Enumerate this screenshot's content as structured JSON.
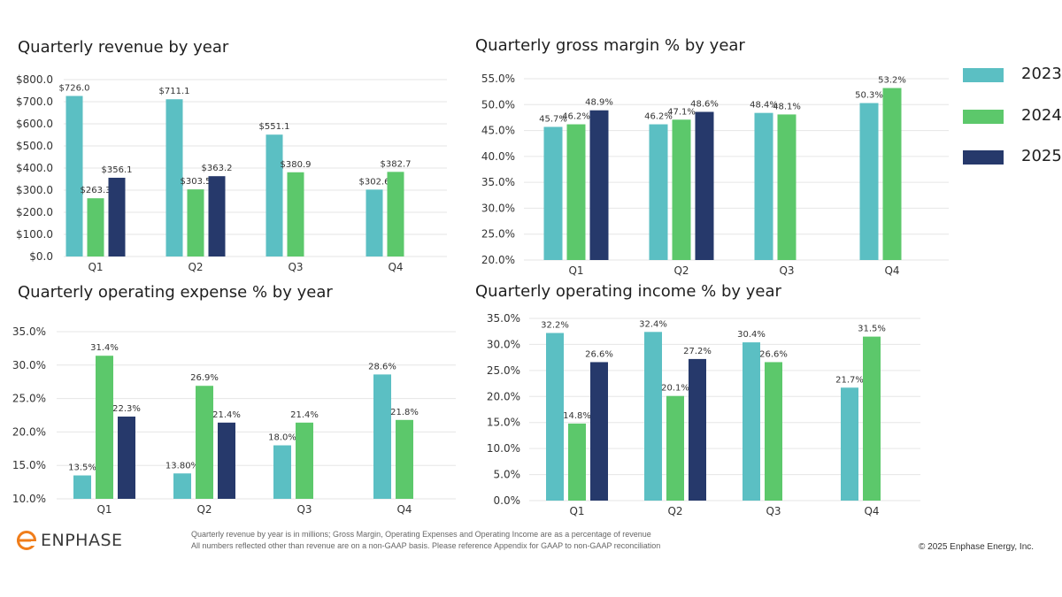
{
  "legend": {
    "items": [
      {
        "label": "2023",
        "color": "#5bbfc3"
      },
      {
        "label": "2024",
        "color": "#5cc86b"
      },
      {
        "label": "2025",
        "color": "#26396b"
      }
    ]
  },
  "footer": {
    "logo_text": "ENPHASE",
    "note_line1": "Quarterly revenue by year is in millions; Gross Margin, Operating Expenses and Operating Income are as a percentage of revenue",
    "note_line2": "All numbers reflected other than revenue are on a non-GAAP basis.  Please reference Appendix for GAAP to non-GAAP reconciliation",
    "copyright": "© 2025 Enphase Energy, Inc."
  },
  "chart_data": [
    {
      "type": "bar",
      "title": "Quarterly revenue by year",
      "categories": [
        "Q1",
        "Q2",
        "Q3",
        "Q4"
      ],
      "ylim": [
        0,
        800
      ],
      "yticks": [
        0,
        100,
        200,
        300,
        400,
        500,
        600,
        700,
        800
      ],
      "ytick_labels": [
        "$0.0",
        "$100.0",
        "$200.0",
        "$300.0",
        "$400.0",
        "$500.0",
        "$600.0",
        "$700.0",
        "$800.0"
      ],
      "series": [
        {
          "name": "2023",
          "values": [
            726.0,
            711.1,
            551.1,
            302.6
          ],
          "labels": [
            "$726.0",
            "$711.1",
            "$551.1",
            "$302.6"
          ]
        },
        {
          "name": "2024",
          "values": [
            263.3,
            303.5,
            380.9,
            382.7
          ],
          "labels": [
            "$263.3",
            "$303.5",
            "$380.9",
            "$382.7"
          ]
        },
        {
          "name": "2025",
          "values": [
            356.1,
            363.2,
            null,
            null
          ],
          "labels": [
            "$356.1",
            "$363.2",
            "",
            ""
          ]
        }
      ]
    },
    {
      "type": "bar",
      "title": "Quarterly gross margin % by year",
      "categories": [
        "Q1",
        "Q2",
        "Q3",
        "Q4"
      ],
      "ylim": [
        20,
        55
      ],
      "yticks": [
        20,
        25,
        30,
        35,
        40,
        45,
        50,
        55
      ],
      "ytick_labels": [
        "20.0%",
        "25.0%",
        "30.0%",
        "35.0%",
        "40.0%",
        "45.0%",
        "50.0%",
        "55.0%"
      ],
      "series": [
        {
          "name": "2023",
          "values": [
            45.7,
            46.2,
            48.4,
            50.3
          ],
          "labels": [
            "45.7%",
            "46.2%",
            "48.4%",
            "50.3%"
          ]
        },
        {
          "name": "2024",
          "values": [
            46.2,
            47.1,
            48.1,
            53.2
          ],
          "labels": [
            "46.2%",
            "47.1%",
            "48.1%",
            "53.2%"
          ]
        },
        {
          "name": "2025",
          "values": [
            48.9,
            48.6,
            null,
            null
          ],
          "labels": [
            "48.9%",
            "48.6%",
            "",
            ""
          ]
        }
      ]
    },
    {
      "type": "bar",
      "title": "Quarterly operating expense % by year",
      "categories": [
        "Q1",
        "Q2",
        "Q3",
        "Q4"
      ],
      "ylim": [
        10,
        35
      ],
      "yticks": [
        10,
        15,
        20,
        25,
        30,
        35
      ],
      "ytick_labels": [
        "10.0%",
        "15.0%",
        "20.0%",
        "25.0%",
        "30.0%",
        "35.0%"
      ],
      "series": [
        {
          "name": "2023",
          "values": [
            13.5,
            13.8,
            18.0,
            28.6
          ],
          "labels": [
            "13.5%",
            "13.80%",
            "18.0%",
            "28.6%"
          ]
        },
        {
          "name": "2024",
          "values": [
            31.4,
            26.9,
            21.4,
            21.8
          ],
          "labels": [
            "31.4%",
            "26.9%",
            "21.4%",
            "21.8%"
          ]
        },
        {
          "name": "2025",
          "values": [
            22.3,
            21.4,
            null,
            null
          ],
          "labels": [
            "22.3%",
            "21.4%",
            "",
            ""
          ]
        }
      ]
    },
    {
      "type": "bar",
      "title": "Quarterly operating income % by year",
      "categories": [
        "Q1",
        "Q2",
        "Q3",
        "Q4"
      ],
      "ylim": [
        0,
        35
      ],
      "yticks": [
        0,
        5,
        10,
        15,
        20,
        25,
        30,
        35
      ],
      "ytick_labels": [
        "0.0%",
        "5.0%",
        "10.0%",
        "15.0%",
        "20.0%",
        "25.0%",
        "30.0%",
        "35.0%"
      ],
      "series": [
        {
          "name": "2023",
          "values": [
            32.2,
            32.4,
            30.4,
            21.7
          ],
          "labels": [
            "32.2%",
            "32.4%",
            "30.4%",
            "21.7%"
          ]
        },
        {
          "name": "2024",
          "values": [
            14.8,
            20.1,
            26.6,
            31.5
          ],
          "labels": [
            "14.8%",
            "20.1%",
            "26.6%",
            "31.5%"
          ]
        },
        {
          "name": "2025",
          "values": [
            26.6,
            27.2,
            null,
            null
          ],
          "labels": [
            "26.6%",
            "27.2%",
            "",
            ""
          ]
        }
      ]
    }
  ]
}
